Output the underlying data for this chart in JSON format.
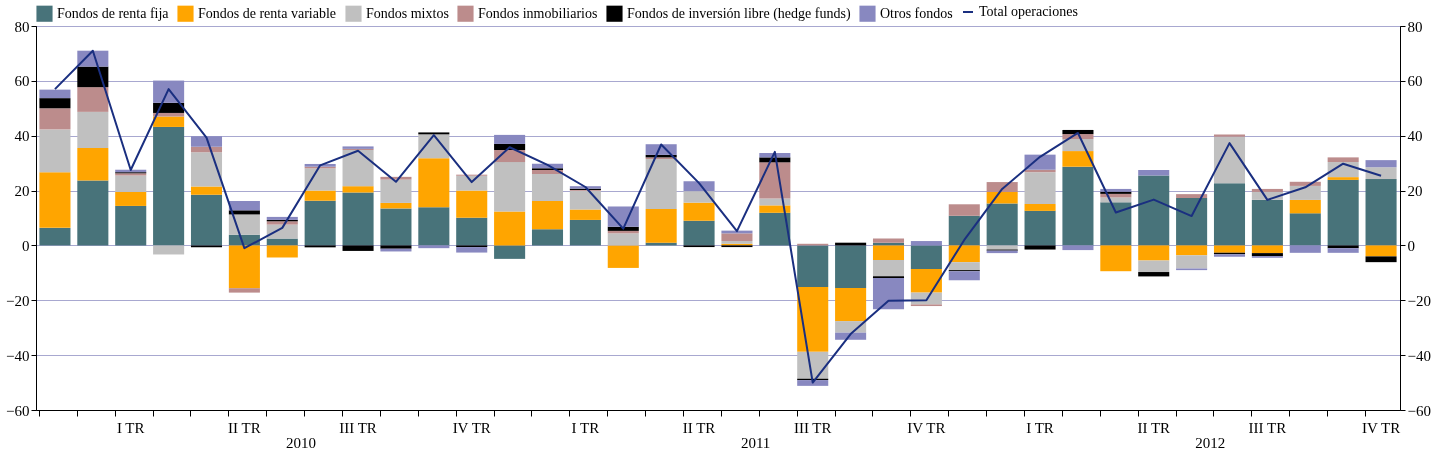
{
  "chart_data": {
    "type": "bar",
    "stacked": true,
    "categories": [
      null,
      null,
      "I TR",
      null,
      null,
      "II TR",
      null,
      null,
      "III TR",
      null,
      null,
      "IV TR",
      null,
      null,
      "I TR",
      null,
      null,
      "II TR",
      null,
      null,
      "III TR",
      null,
      null,
      "IV TR",
      null,
      null,
      "I TR",
      null,
      null,
      "II TR",
      null,
      null,
      "III TR",
      null,
      null,
      "IV TR"
    ],
    "series": [
      {
        "name": "Fondos de renta fija",
        "color": "#48737a",
        "values": [
          6.4,
          23.7,
          14.4,
          43.2,
          18.5,
          3.9,
          2.5,
          16.3,
          19.3,
          13.5,
          13.9,
          10.1,
          -4.9,
          5.9,
          9.3,
          0,
          1.0,
          9.0,
          0,
          11.9,
          -15.2,
          -15.5,
          1.0,
          -8.6,
          10.8,
          15.3,
          12.6,
          28.7,
          15.7,
          25.5,
          17.3,
          22.7,
          16.6,
          11.7,
          23.9,
          24.2
        ]
      },
      {
        "name": "Fondos de renta variable",
        "color": "#ffa500",
        "values": [
          20.3,
          11.8,
          5.1,
          3.8,
          3.0,
          -15.6,
          -4.4,
          3.7,
          2.3,
          2.0,
          17.9,
          9.9,
          12.4,
          10.3,
          3.8,
          -8.2,
          12.3,
          6.6,
          0.6,
          2.7,
          -23.6,
          -12.1,
          -5.3,
          -8.6,
          -6.1,
          4.2,
          2.5,
          5.7,
          -9.4,
          -5.5,
          -3.6,
          -2.7,
          -2.8,
          4.9,
          1.0,
          -4.0
        ]
      },
      {
        "name": "Fondos mixtos",
        "color": "#c0c0c0",
        "values": [
          15.6,
          13.2,
          6.0,
          -3.3,
          12.5,
          7.4,
          5.1,
          8.1,
          13.2,
          8.5,
          8.7,
          5.4,
          18.0,
          9.8,
          6.8,
          4.4,
          18.2,
          4.2,
          1.0,
          2.5,
          -9.8,
          -4.2,
          -5.9,
          -4.3,
          -2.9,
          -1.5,
          11.6,
          4.4,
          1.8,
          -4.2,
          -4.8,
          16.9,
          2.9,
          5.1,
          5.5,
          4.3
        ]
      },
      {
        "name": "Fondos inmobiliarios",
        "color": "#bc8c8c",
        "values": [
          7.7,
          9.0,
          0.8,
          1.3,
          2.0,
          -1.6,
          1.2,
          0.6,
          0.4,
          1.0,
          0,
          0.4,
          4.4,
          1.5,
          0.3,
          0.9,
          0.6,
          0,
          2.8,
          13.2,
          0.6,
          0,
          1.5,
          -0.6,
          4.2,
          3.6,
          0.9,
          1.8,
          1.3,
          0,
          1.4,
          0.8,
          1.1,
          1.5,
          1.7,
          0
        ]
      },
      {
        "name": "Fondos de inversión libre (hedge funds)",
        "color": "#000000",
        "values": [
          3.7,
          7.5,
          0.4,
          3.7,
          -0.7,
          1.5,
          0.5,
          -0.7,
          -2.0,
          -1.2,
          0.7,
          -0.6,
          2.2,
          0.6,
          0.5,
          1.5,
          0.9,
          -0.6,
          -0.6,
          1.8,
          -0.5,
          1.0,
          -0.7,
          0,
          -0.4,
          -0.4,
          -1.5,
          1.5,
          0.8,
          -1.6,
          0,
          -0.5,
          -1.1,
          0,
          -1.0,
          -2.1
        ]
      },
      {
        "name": "Otros fondos",
        "color": "#8888c0",
        "values": [
          3.1,
          5.8,
          0.9,
          8.1,
          3.8,
          3.4,
          1.1,
          1.0,
          0.9,
          -1.0,
          -1.0,
          -2.0,
          3.3,
          1.7,
          0.9,
          7.4,
          3.9,
          3.6,
          1.0,
          1.6,
          -2.1,
          -2.6,
          -11.4,
          1.6,
          -3.3,
          -0.9,
          5.5,
          -1.7,
          1.0,
          2.0,
          -0.6,
          -0.9,
          -0.6,
          -2.7,
          -1.7,
          2.6
        ]
      },
      {
        "name": "Total operaciones",
        "type": "line",
        "axis": "y2",
        "color": "#1a2f80",
        "values": [
          57,
          71,
          27.5,
          57,
          39.3,
          -1.0,
          6.4,
          29.2,
          34.5,
          23.2,
          40.2,
          23.1,
          35.8,
          29.4,
          21.3,
          6.1,
          36.8,
          22.7,
          5.2,
          34.1,
          -50,
          -32.3,
          -20.2,
          -20,
          2,
          20.6,
          32.3,
          41,
          12,
          16.7,
          10.7,
          37.3,
          16.6,
          21.2,
          29.8,
          25.4
        ]
      }
    ],
    "ylim": [
      -60,
      80
    ],
    "yticks": [
      -60,
      -40,
      -20,
      0,
      20,
      40,
      60,
      80
    ],
    "y2lim": [
      -60,
      80
    ],
    "y2ticks": [
      -60,
      -40,
      -20,
      0,
      20,
      40,
      60,
      80
    ],
    "grid": "y",
    "legend": "top",
    "marker": "none",
    "annotations": [
      "2010",
      "2011",
      "2012"
    ]
  }
}
